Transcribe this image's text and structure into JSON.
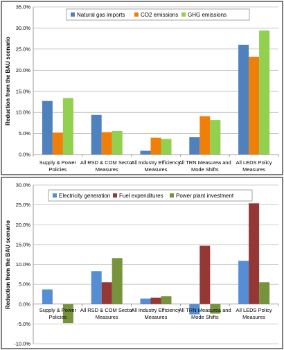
{
  "chart_data": [
    {
      "type": "bar",
      "title": "",
      "xlabel": "",
      "ylabel": "Reduction from the BAU scenario",
      "ylim": [
        0,
        35
      ],
      "yticks": [
        "0.0%",
        "5.0%",
        "10.0%",
        "15.0%",
        "20.0%",
        "25.0%",
        "30.0%",
        "35.0%"
      ],
      "ytick_values": [
        0,
        5,
        10,
        15,
        20,
        25,
        30,
        35
      ],
      "grid": true,
      "legend_position": "top",
      "categories": [
        [
          "Supply & Power",
          "Policies"
        ],
        [
          "All RSD & COM Sector",
          "Measures"
        ],
        [
          "All Industry Efficiency",
          "Measures"
        ],
        [
          "All TRN Measurea and",
          "Mode Shifts"
        ],
        [
          "All LEDS Policy",
          "Measures"
        ]
      ],
      "series": [
        {
          "name": "Natural gas imports",
          "color": "#4f81bd",
          "values": [
            12.7,
            9.4,
            0.9,
            4.1,
            26.0
          ]
        },
        {
          "name": "CO2 emissions",
          "color": "#f07f09",
          "values": [
            5.2,
            5.3,
            4.0,
            9.1,
            23.2
          ]
        },
        {
          "name": "GHG emissions",
          "color": "#92d050",
          "values": [
            13.4,
            5.6,
            3.7,
            8.2,
            29.4
          ]
        }
      ]
    },
    {
      "type": "bar",
      "title": "",
      "xlabel": "",
      "ylabel": "Reduction from the BAU scenario",
      "ylim": [
        -10,
        30
      ],
      "yticks": [
        "-10.0%",
        "-5.0%",
        "0.0%",
        "5.0%",
        "10.0%",
        "15.0%",
        "20.0%",
        "25.0%",
        "30.0%"
      ],
      "ytick_values": [
        -10,
        -5,
        0,
        5,
        10,
        15,
        20,
        25,
        30
      ],
      "grid": true,
      "legend_position": "top",
      "categories": [
        [
          "Supply & Power",
          "Policies"
        ],
        [
          "All RSD & COM Sector",
          "Measures"
        ],
        [
          "All Industry Efficiency",
          "Measures"
        ],
        [
          "All TRN Measurea and",
          "Mode Shifts"
        ],
        [
          "All LEDS Policy",
          "Measures"
        ]
      ],
      "series": [
        {
          "name": "Electricity generation",
          "color": "#558ed5",
          "values": [
            3.7,
            8.3,
            1.4,
            -2.6,
            10.9
          ]
        },
        {
          "name": "Fuel expenditures",
          "color": "#953735",
          "values": [
            0.0,
            5.5,
            1.6,
            14.7,
            25.4
          ]
        },
        {
          "name": "Power plant investment",
          "color": "#77933c",
          "values": [
            -4.8,
            11.6,
            2.0,
            -2.4,
            5.5
          ]
        }
      ]
    }
  ]
}
